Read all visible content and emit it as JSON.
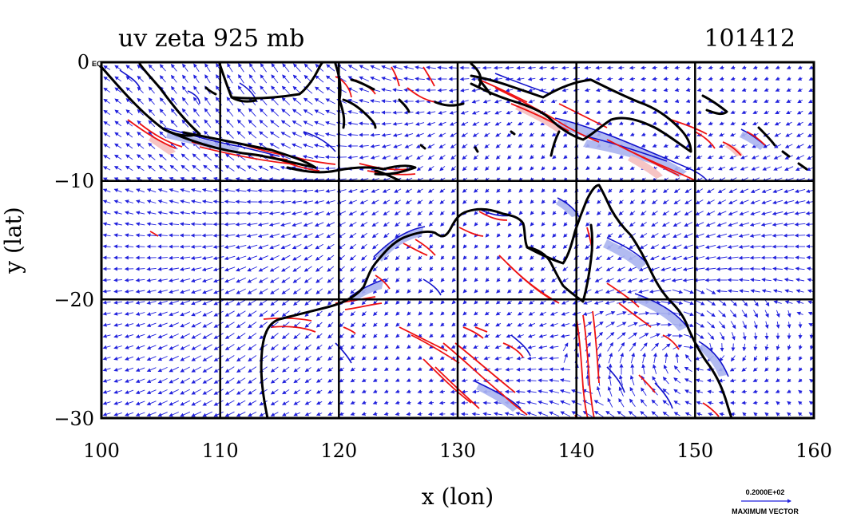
{
  "map": {
    "title_left": "uv zeta 925 mb",
    "title_right": "101412",
    "xlabel": "x (lon)",
    "ylabel": "y (lat)",
    "x_range": [
      100,
      160
    ],
    "y_range": [
      -30,
      0
    ],
    "x_ticks": [
      "100",
      "110",
      "120",
      "130",
      "140",
      "150",
      "160"
    ],
    "y_ticks": [
      "0",
      "−10",
      "−20",
      "−30"
    ],
    "y_tick_suffix": "EQ",
    "legend": {
      "value": "0.2000E+02",
      "label": "MAXIMUM VECTOR"
    },
    "colors": {
      "vectors": "#2222dd",
      "positive_contour": "#ee1111",
      "negative_contour": "#1111cc",
      "negative_fill": "#aab4f0",
      "positive_fill": "#f6c4c4",
      "coast": "#000000"
    }
  }
}
